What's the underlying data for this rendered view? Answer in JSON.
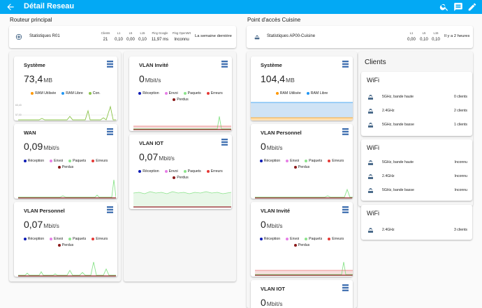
{
  "appbar": {
    "title": "Détail Reseau",
    "icons": [
      "back-arrow-icon",
      "search-icon",
      "message-icon",
      "pencil-icon"
    ],
    "color": "#03a9f4"
  },
  "router": {
    "section_title": "Routeur principal",
    "stats_name": "Statistiques R01",
    "headers": [
      "Clients",
      "L1",
      "L5",
      "L15",
      "Ping Google",
      "Ping OpenWrt"
    ],
    "values": [
      "21",
      "0,10",
      "0,00",
      "0,10",
      "11,97 ms",
      "Inconnu"
    ],
    "last": "La semaine dernière"
  },
  "ap": {
    "section_title": "Point d'accès Cuisine",
    "stats_name": "Statistiques AP00-Cuisine",
    "headers": [
      "L1",
      "L5",
      "L15"
    ],
    "values": [
      "0,00",
      "0,10",
      "0,10"
    ],
    "last": "Il y a 2 heures"
  },
  "panels": {
    "r_sys": {
      "title": "Système",
      "value": "73,4",
      "unit": "MB",
      "legend": [
        "RAM Utilisée",
        "RAM Libre",
        "Con."
      ],
      "axis": [
        "63,43",
        "57,00"
      ]
    },
    "r_wan": {
      "title": "WAN",
      "value": "0,09",
      "unit": "Mbit/s",
      "legend": [
        "Réception",
        "Envoi",
        "Paquets",
        "Erreurs",
        "Perdus"
      ]
    },
    "r_vper": {
      "title": "VLAN Personnel",
      "value": "0,07",
      "unit": "Mbit/s",
      "legend": [
        "Réception",
        "Envoi",
        "Paquets",
        "Erreurs",
        "Perdus"
      ]
    },
    "r_vinv": {
      "title": "VLAN Invité",
      "value": "0",
      "unit": "Mbit/s",
      "legend": [
        "Réception",
        "Envoi",
        "Paquets",
        "Erreurs",
        "Perdus"
      ]
    },
    "r_viot": {
      "title": "VLAN IOT",
      "value": "0,07",
      "unit": "Mbit/s",
      "legend": [
        "Réception",
        "Envoi",
        "Paquets",
        "Erreurs",
        "Perdus"
      ]
    },
    "a_sys": {
      "title": "Système",
      "value": "104,4",
      "unit": "MB",
      "legend": [
        "RAM Utilisée",
        "RAM Libre"
      ]
    },
    "a_vper": {
      "title": "VLAN Personnel",
      "value": "0",
      "unit": "Mbit/s",
      "legend": [
        "Réception",
        "Envoi",
        "Paquets",
        "Erreurs",
        "Perdus"
      ]
    },
    "a_vinv": {
      "title": "VLAN Invité",
      "value": "0",
      "unit": "Mbit/s",
      "legend": [
        "Réception",
        "Envoi",
        "Paquets",
        "Erreurs",
        "Perdus"
      ]
    },
    "a_viot": {
      "title": "VLAN IOT",
      "value": "0",
      "unit": "Mbit/s"
    }
  },
  "legend_colors": {
    "RAM Utilisée": "#ff9800",
    "RAM Libre": "#2196f3",
    "Con.": "#8bc34a",
    "Réception": "#0d1bb5",
    "Envoi": "#e67ee6",
    "Paquets": "#8be38b",
    "Erreurs": "#e53935",
    "Perdus": "#8b1a1a"
  },
  "clients": {
    "title": "Clients",
    "groups": [
      {
        "title": "WiFi",
        "rows": [
          {
            "label": "5GHz, bande haute",
            "value": "0 clients"
          },
          {
            "label": "2.4GHz",
            "value": "2 clients"
          },
          {
            "label": "5GHz, bande basse",
            "value": "1 clients"
          }
        ]
      },
      {
        "title": "WiFi",
        "rows": [
          {
            "label": "5GHz, bande haute",
            "value": "Inconnu"
          },
          {
            "label": "2.4GHz",
            "value": "Inconnu"
          },
          {
            "label": "5GHz, bande basse",
            "value": "Inconnu"
          }
        ]
      },
      {
        "title": "WiFi",
        "rows": [
          {
            "label": "2.4GHz",
            "value": "3 clients"
          }
        ]
      }
    ]
  }
}
